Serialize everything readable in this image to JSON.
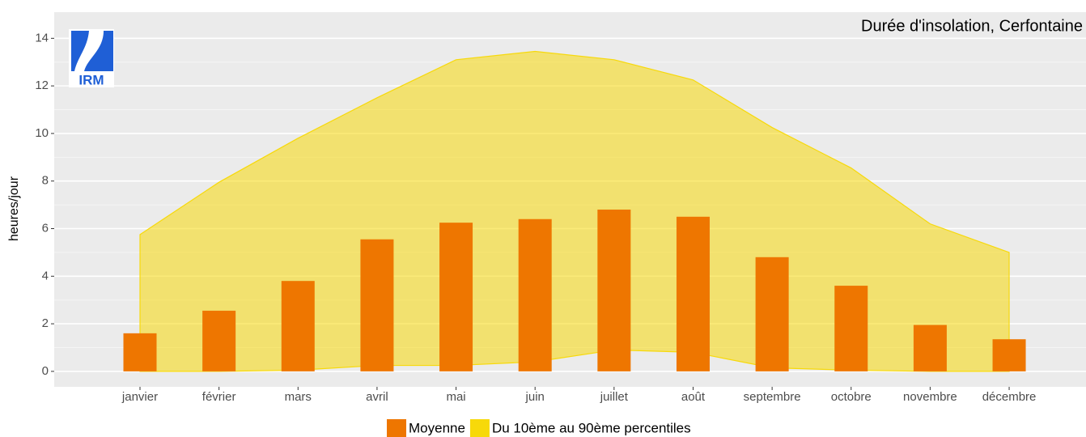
{
  "chart_data": {
    "type": "bar-band",
    "title": "Durée d'insolation, Cerfontaine",
    "logo_text": "IRM",
    "y_label": "heures/jour",
    "categories": [
      "janvier",
      "février",
      "mars",
      "avril",
      "mai",
      "juin",
      "juillet",
      "août",
      "septembre",
      "octobre",
      "novembre",
      "décembre"
    ],
    "series": [
      {
        "name": "Moyenne",
        "color": "#ee7600",
        "values": [
          1.6,
          2.55,
          3.8,
          5.55,
          6.25,
          6.4,
          6.8,
          6.5,
          4.8,
          3.6,
          1.95,
          1.35
        ]
      },
      {
        "name": "Du 10ème au 90ème percentiles",
        "color": "#f7d90a",
        "lower": [
          0,
          0,
          0.05,
          0.25,
          0.25,
          0.4,
          0.9,
          0.8,
          0.15,
          0.05,
          0,
          0
        ],
        "upper": [
          5.75,
          7.95,
          9.8,
          11.5,
          13.1,
          13.45,
          13.1,
          12.25,
          10.25,
          8.55,
          6.2,
          5.0
        ]
      }
    ],
    "ylim": [
      -0.65,
      15.1
    ],
    "yticks": [
      0,
      2,
      4,
      6,
      8,
      10,
      12,
      14
    ],
    "grid": true
  }
}
